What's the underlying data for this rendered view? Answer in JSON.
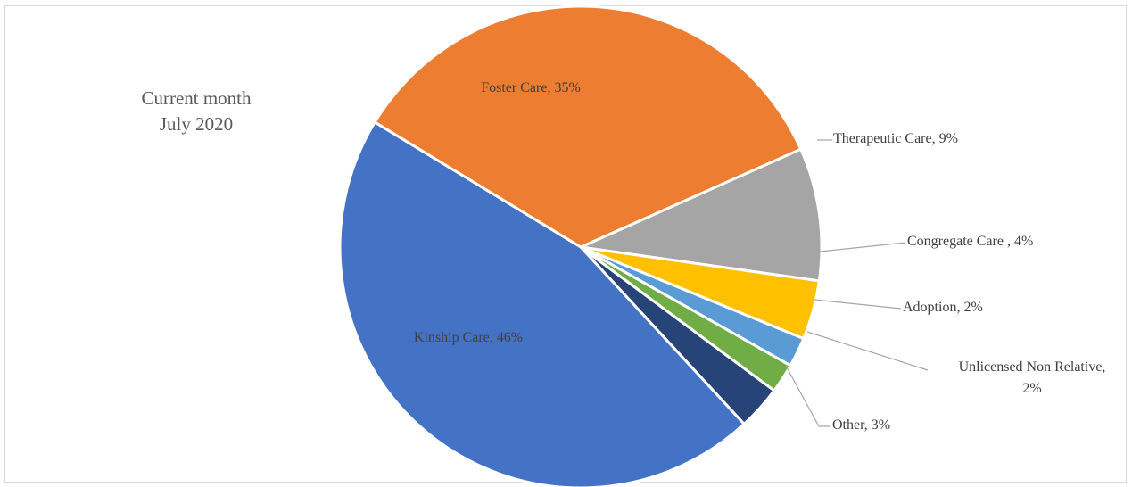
{
  "chart_data": {
    "type": "pie",
    "title": "",
    "annotation": [
      "Current month",
      "July 2020"
    ],
    "start_angle_deg": 24,
    "slices": [
      {
        "label": "Therapeutic Care, 9%",
        "lines": [
          "Therapeutic Care, 9%"
        ],
        "value": 9,
        "color": "#A5A5A5",
        "label_pos": "outside"
      },
      {
        "label": "Congregate Care , 4%",
        "lines": [
          "Congregate Care , 4%"
        ],
        "value": 4,
        "color": "#FFC000",
        "label_pos": "outside"
      },
      {
        "label": "Adoption, 2%",
        "lines": [
          "Adoption, 2%"
        ],
        "value": 2,
        "color": "#5B9BD5",
        "label_pos": "outside"
      },
      {
        "label": "Unlicensed Non Relative, 2%",
        "lines": [
          "Unlicensed Non Relative,",
          "2%"
        ],
        "value": 2,
        "color": "#70AD47",
        "label_pos": "outside"
      },
      {
        "label": "Other, 3%",
        "lines": [
          "Other, 3%"
        ],
        "value": 3,
        "color": "#264478",
        "label_pos": "outside"
      },
      {
        "label": "Kinship Care, 46%",
        "lines": [
          "Kinship Care, 46%"
        ],
        "value": 46,
        "color": "#4472C4",
        "label_pos": "inside"
      },
      {
        "label": "Foster Care, 35%",
        "lines": [
          "Foster Care, 35%"
        ],
        "value": 35,
        "color": "#ED7D31",
        "label_pos": "inside"
      }
    ],
    "legend": "none",
    "slice_border_color": "#ffffff"
  }
}
